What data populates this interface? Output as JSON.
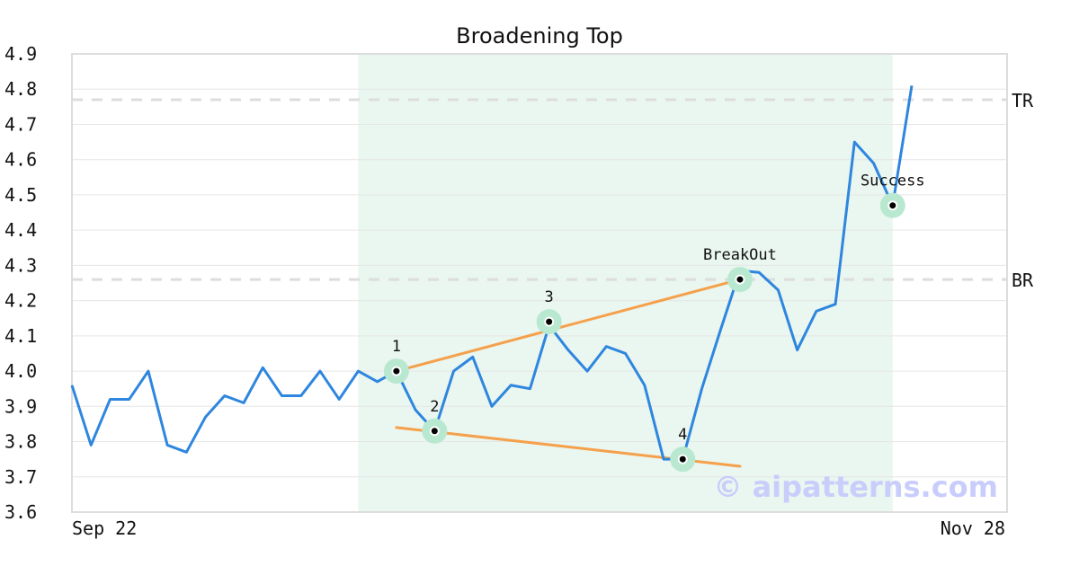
{
  "chart_data": {
    "type": "line",
    "title": "Broadening Top",
    "ylim": [
      3.6,
      4.9
    ],
    "yticks": [
      "3.6",
      "3.7",
      "3.8",
      "3.9",
      "4.0",
      "4.1",
      "4.2",
      "4.3",
      "4.4",
      "4.5",
      "4.6",
      "4.7",
      "4.8",
      "4.9"
    ],
    "x_labels": {
      "start": "Sep 22",
      "end": "Nov 28"
    },
    "grid": true,
    "series": [
      {
        "values": [
          3.96,
          3.79,
          3.92,
          3.92,
          4.0,
          3.79,
          3.77,
          3.87,
          3.93,
          3.91,
          4.01,
          3.93,
          3.93,
          4.0,
          3.92,
          4.0,
          3.97,
          4.0,
          3.89,
          3.83,
          4.0,
          4.04,
          3.9,
          3.96,
          3.95,
          4.13,
          4.06,
          4.0,
          4.07,
          4.05,
          3.96,
          3.75,
          3.75,
          3.95,
          4.12,
          4.285,
          4.28,
          4.23,
          4.06,
          4.17,
          4.19,
          4.65,
          4.59,
          4.47,
          4.81
        ]
      }
    ],
    "highlight_range": [
      15,
      43
    ],
    "trendlines": [
      {
        "from": [
          17,
          4.0
        ],
        "to": [
          35,
          4.26
        ]
      },
      {
        "from": [
          17,
          3.84
        ],
        "to": [
          35,
          3.73
        ]
      }
    ],
    "points": [
      {
        "label": "1",
        "x": 17,
        "y": 4.0,
        "label_pos": "above"
      },
      {
        "label": "2",
        "x": 19,
        "y": 3.83,
        "label_pos": "above"
      },
      {
        "label": "3",
        "x": 25,
        "y": 4.14,
        "label_pos": "above"
      },
      {
        "label": "4",
        "x": 32,
        "y": 3.75,
        "label_pos": "above"
      },
      {
        "label": "BreakOut",
        "x": 35,
        "y": 4.26,
        "label_pos": "above"
      },
      {
        "label": "Success",
        "x": 43,
        "y": 4.47,
        "label_pos": "above"
      }
    ],
    "levels": [
      {
        "label": "TR",
        "y": 4.77
      },
      {
        "label": "BR",
        "y": 4.26
      }
    ],
    "colors": {
      "line": "#2e86de",
      "trend": "#f5a04a",
      "highlight": "#eaf6f0",
      "marker_halo": "#b9e8d0",
      "level": "#dddddd",
      "grid": "#e6e6e6",
      "frame": "#dddddd"
    }
  },
  "watermark": "© aipatterns.com"
}
